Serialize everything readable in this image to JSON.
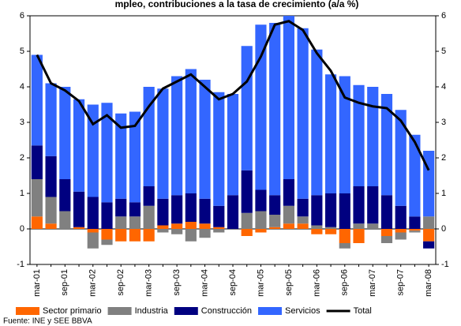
{
  "chart_data": {
    "type": "stacked_bar_line",
    "title": "mpleo, contribuciones a la tasa de crecimiento (a/a %)",
    "source": "Fuente: INE y SEE BBVA",
    "categories": [
      "mar-01",
      null,
      "sep-01",
      null,
      "mar-02",
      null,
      "sep-02",
      null,
      "mar-03",
      null,
      "sep-03",
      null,
      "mar-04",
      null,
      "sep-04",
      null,
      "mar-05",
      null,
      "sep-05",
      null,
      "mar-06",
      null,
      "sep-06",
      null,
      "mar-07",
      null,
      "sep-07",
      null,
      "mar-08"
    ],
    "series": [
      {
        "name": "Sector primario",
        "color": "#ff6600",
        "values": [
          0.35,
          0.15,
          0,
          0.05,
          -0.1,
          -0.3,
          -0.35,
          -0.35,
          -0.35,
          0.1,
          0.15,
          0.2,
          0.15,
          0.05,
          0,
          -0.2,
          -0.1,
          0.05,
          0.15,
          0.15,
          -0.15,
          -0.15,
          -0.4,
          -0.4,
          0,
          -0.2,
          -0.1,
          -0.05,
          -0.35
        ]
      },
      {
        "name": "Industria",
        "color": "#808080",
        "values": [
          1.05,
          0.75,
          0.5,
          0,
          -0.45,
          -0.15,
          0.35,
          0.35,
          0.65,
          -0.1,
          -0.15,
          -0.35,
          -0.25,
          -0.1,
          0,
          0.45,
          0.5,
          0.35,
          0.5,
          0.2,
          0.1,
          0.05,
          -0.15,
          0.15,
          0.15,
          -0.2,
          -0.2,
          -0.05,
          0.35
        ]
      },
      {
        "name": "Construcción",
        "color": "#000080",
        "values": [
          0.95,
          1.15,
          0.9,
          1.0,
          0.9,
          0.75,
          0.5,
          0.4,
          0.55,
          0.75,
          0.8,
          0.8,
          0.7,
          0.6,
          0.95,
          1.2,
          0.6,
          0.55,
          0.75,
          0.5,
          0.85,
          0.95,
          1.0,
          1.05,
          1.05,
          0.95,
          0.65,
          0.35,
          -0.2
        ]
      },
      {
        "name": "Servicios",
        "color": "#3366ff",
        "values": [
          2.55,
          2.05,
          2.6,
          2.6,
          2.6,
          2.8,
          2.4,
          2.55,
          2.8,
          3.1,
          3.35,
          3.5,
          3.35,
          3.2,
          2.85,
          3.5,
          4.65,
          4.85,
          4.6,
          4.8,
          4.1,
          3.35,
          3.3,
          2.85,
          2.8,
          2.85,
          2.7,
          2.3,
          1.85
        ]
      },
      {
        "name": "Total",
        "color": "#000000",
        "line": true,
        "values": [
          4.9,
          4.1,
          3.9,
          3.6,
          2.95,
          3.2,
          2.85,
          2.9,
          3.45,
          3.95,
          4.15,
          4.35,
          4.0,
          3.65,
          3.8,
          4.15,
          4.85,
          5.75,
          5.85,
          5.6,
          4.95,
          4.45,
          3.7,
          3.55,
          3.45,
          3.4,
          3.05,
          2.45,
          1.65
        ]
      }
    ],
    "ylim": [
      -1,
      6
    ],
    "yticks": [
      -1,
      0,
      1,
      2,
      3,
      4,
      5,
      6
    ],
    "grid": false
  }
}
